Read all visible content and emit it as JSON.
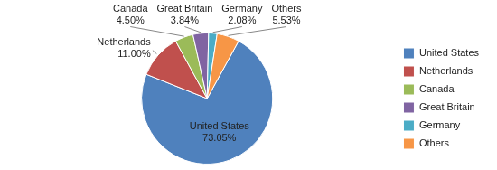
{
  "chart_data": {
    "type": "pie",
    "categories": [
      "United States",
      "Netherlands",
      "Canada",
      "Great Britain",
      "Germany",
      "Others"
    ],
    "values": [
      73.05,
      11.0,
      4.5,
      3.84,
      2.08,
      5.53
    ],
    "value_labels": [
      "73.05%",
      "11.00%",
      "4.50%",
      "3.84%",
      "2.08%",
      "5.53%"
    ],
    "colors": [
      "#4f81bd",
      "#c0504d",
      "#9bbb59",
      "#8064a2",
      "#4bacc6",
      "#f79646"
    ],
    "legend": "right",
    "data_labels": true
  }
}
